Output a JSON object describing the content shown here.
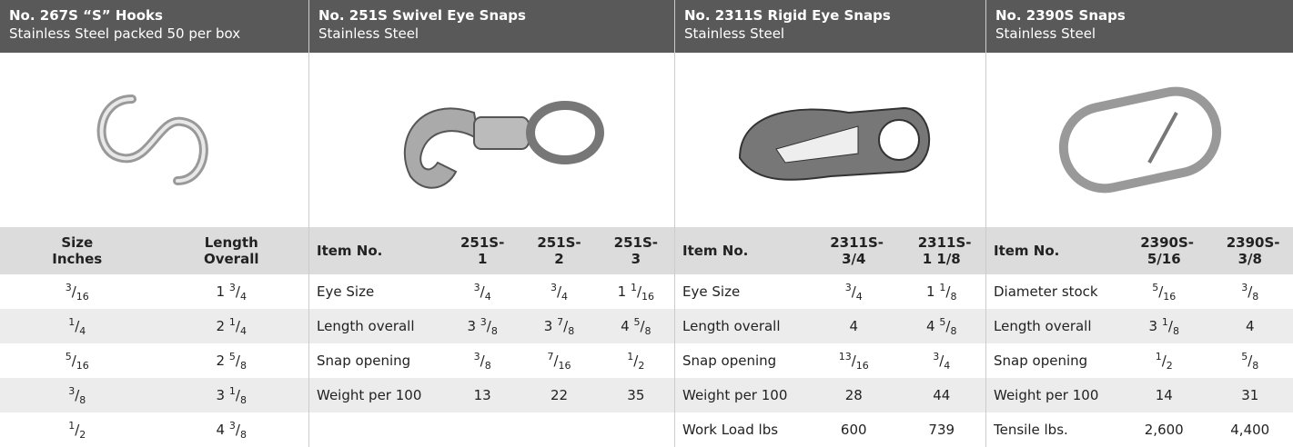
{
  "panels": [
    {
      "title": "No. 267S “S” Hooks",
      "subtitle": "Stainless Steel packed 50 per box",
      "headers": [
        "Size Inches",
        "Length Overall"
      ],
      "rows": [
        [
          "3/16",
          "1 3/4"
        ],
        [
          "1/4",
          "2 1/4"
        ],
        [
          "5/16",
          "2 5/8"
        ],
        [
          "3/8",
          "3 1/8"
        ],
        [
          "1/2",
          "4 3/8"
        ]
      ]
    },
    {
      "title": "No. 251S Swivel Eye Snaps",
      "subtitle": "Stainless Steel",
      "headers": [
        "Item No.",
        "251S-1",
        "251S-2",
        "251S-3"
      ],
      "rows": [
        [
          "Eye Size",
          "3/4",
          "3/4",
          "1 1/16"
        ],
        [
          "Length overall",
          "3 3/8",
          "3 7/8",
          "4 5/8"
        ],
        [
          "Snap opening",
          "3/8",
          "7/16",
          "1/2"
        ],
        [
          "Weight per 100",
          "13",
          "22",
          "35"
        ]
      ]
    },
    {
      "title": "No. 2311S Rigid Eye Snaps",
      "subtitle": "Stainless Steel",
      "headers": [
        "Item No.",
        "2311S-3/4",
        "2311S-1 1/8"
      ],
      "rows": [
        [
          "Eye Size",
          "3/4",
          "1 1/8"
        ],
        [
          "Length overall",
          "4",
          "4 5/8"
        ],
        [
          "Snap opening",
          "13/16",
          "3/4"
        ],
        [
          "Weight per 100",
          "28",
          "44"
        ],
        [
          "Work Load lbs",
          "600",
          "739"
        ]
      ]
    },
    {
      "title": "No. 2390S Snaps",
      "subtitle": "Stainless Steel",
      "headers": [
        "Item No.",
        "2390S-5/16",
        "2390S-3/8"
      ],
      "rows": [
        [
          "Diameter stock",
          "5/16",
          "3/8"
        ],
        [
          "Length overall",
          "3 1/8",
          "4"
        ],
        [
          "Snap opening",
          "1/2",
          "5/8"
        ],
        [
          "Weight per 100",
          "14",
          "31"
        ],
        [
          "Tensile lbs.",
          "2,600",
          "4,400"
        ]
      ]
    }
  ]
}
